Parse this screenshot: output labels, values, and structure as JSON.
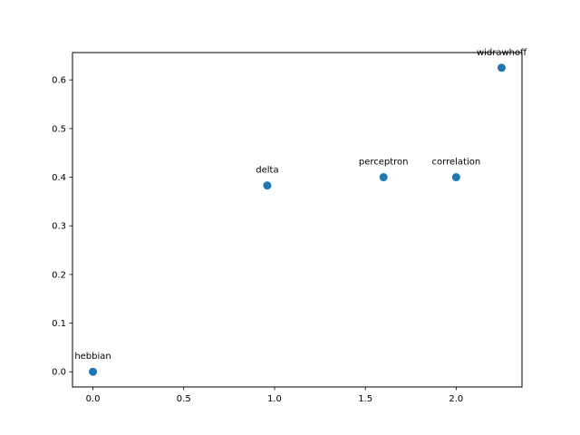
{
  "chart_data": {
    "type": "scatter",
    "title": "",
    "xlabel": "",
    "ylabel": "",
    "xlim": [
      -0.1125,
      2.3625
    ],
    "ylim": [
      -0.03125,
      0.65625
    ],
    "x_ticks": [
      0.0,
      0.5,
      1.0,
      1.5,
      2.0
    ],
    "x_tick_labels": [
      "0.0",
      "0.5",
      "1.0",
      "1.5",
      "2.0"
    ],
    "y_ticks": [
      0.0,
      0.1,
      0.2,
      0.3,
      0.4,
      0.5,
      0.6
    ],
    "y_tick_labels": [
      "0.0",
      "0.1",
      "0.2",
      "0.3",
      "0.4",
      "0.5",
      "0.6"
    ],
    "grid": false,
    "marker_color": "#1f77b4",
    "points": [
      {
        "label": "hebbian",
        "x": 0.0,
        "y": 0.0
      },
      {
        "label": "delta",
        "x": 0.96,
        "y": 0.383
      },
      {
        "label": "perceptron",
        "x": 1.6,
        "y": 0.4
      },
      {
        "label": "correlation",
        "x": 2.0,
        "y": 0.4
      },
      {
        "label": "widrawhoff",
        "x": 2.25,
        "y": 0.625
      }
    ]
  }
}
